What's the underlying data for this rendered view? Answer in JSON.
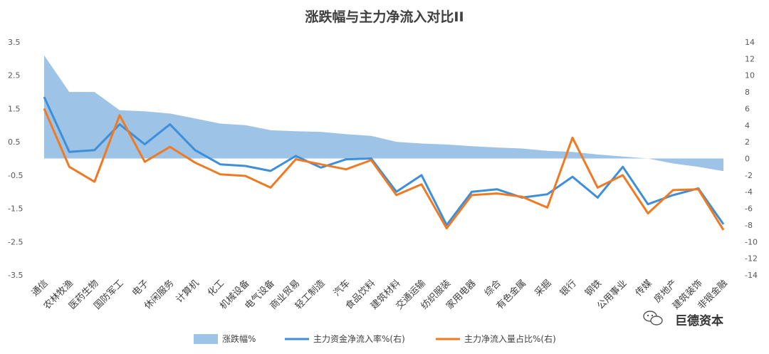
{
  "chart_data": {
    "type": "area",
    "title": "涨跌幅与主力净流入对比II",
    "categories": [
      "通信",
      "农林牧渔",
      "医药生物",
      "国防军工",
      "电子",
      "休闲服务",
      "计算机",
      "化工",
      "机械设备",
      "电气设备",
      "商业贸易",
      "轻工制造",
      "汽车",
      "食品饮料",
      "建筑材料",
      "交通运输",
      "纺织服装",
      "家用电器",
      "综合",
      "有色金属",
      "采掘",
      "银行",
      "钢铁",
      "公用事业",
      "传媒",
      "房地产",
      "建筑装饰",
      "非银金融"
    ],
    "left_axis": {
      "min": -3.5,
      "max": 3.5,
      "ticks": [
        "3.5",
        "2.5",
        "1.5",
        "0.5",
        "-0.5",
        "-1.5",
        "-2.5",
        "-3.5"
      ]
    },
    "right_axis": {
      "min": -14,
      "max": 14,
      "ticks": [
        "14",
        "12",
        "10",
        "8",
        "6",
        "4",
        "2",
        "0",
        "-2",
        "-4",
        "-6",
        "-8",
        "-10",
        "-12",
        "-14"
      ]
    },
    "series": [
      {
        "name": "涨跌幅%",
        "kind": "area",
        "axis": "left",
        "color": "#9dc3e6",
        "values": [
          3.1,
          2.0,
          2.0,
          1.45,
          1.42,
          1.35,
          1.2,
          1.05,
          1.0,
          0.85,
          0.82,
          0.8,
          0.73,
          0.68,
          0.5,
          0.45,
          0.42,
          0.37,
          0.33,
          0.3,
          0.23,
          0.2,
          0.12,
          0.06,
          0.0,
          -0.15,
          -0.25,
          -0.38
        ]
      },
      {
        "name": "主力资金净流入率%(右)",
        "kind": "line",
        "axis": "right",
        "color": "#3d8fd9",
        "values": [
          7.4,
          0.8,
          1.0,
          4.1,
          1.7,
          4.1,
          1.0,
          -0.7,
          -0.9,
          -1.5,
          0.3,
          -1.1,
          -0.1,
          0.0,
          -4.0,
          -2.0,
          -8.0,
          -4.0,
          -3.7,
          -4.7,
          -4.3,
          -2.2,
          -4.7,
          -1.0,
          -5.5,
          -4.4,
          -3.6,
          -7.9
        ]
      },
      {
        "name": "主力净流入量占比%(右)",
        "kind": "line",
        "axis": "right",
        "color": "#f07a23",
        "values": [
          6.0,
          -1.0,
          -2.8,
          5.2,
          -0.4,
          1.4,
          -0.5,
          -1.9,
          -2.1,
          -3.5,
          -0.1,
          -0.7,
          -1.3,
          -0.2,
          -4.4,
          -3.1,
          -8.4,
          -4.4,
          -4.2,
          -4.6,
          -5.9,
          2.5,
          -3.5,
          -2.0,
          -6.6,
          -3.8,
          -3.7,
          -8.6
        ]
      }
    ],
    "legend_position": "bottom",
    "grid": false
  },
  "watermark": {
    "text": "巨德资本",
    "icon": "wechat-icon"
  }
}
